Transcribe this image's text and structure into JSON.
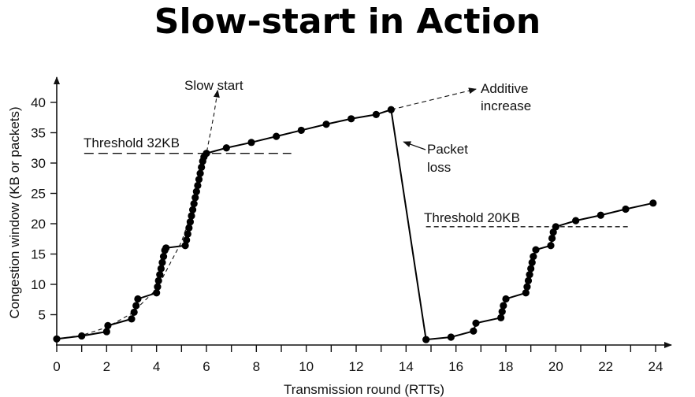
{
  "slide": {
    "title": "Slow-start in Action"
  },
  "chart_data": {
    "type": "line",
    "xlabel": "Transmission round (RTTs)",
    "ylabel": "Congestion window (KB or packets)",
    "xlim": [
      0,
      24
    ],
    "ylim": [
      0,
      40
    ],
    "xticks": [
      0,
      2,
      4,
      6,
      8,
      10,
      12,
      14,
      16,
      18,
      20,
      22,
      24
    ],
    "yticks": [
      5,
      10,
      15,
      20,
      25,
      30,
      35,
      40
    ],
    "grid": false,
    "series": [
      {
        "points": [
          [
            0,
            1
          ],
          [
            1,
            1.5
          ],
          [
            2,
            2.2
          ],
          [
            2.05,
            3.2
          ],
          [
            3,
            4.3
          ],
          [
            3.1,
            5.4
          ],
          [
            3.18,
            6.5
          ],
          [
            3.25,
            7.6
          ],
          [
            4,
            8.6
          ],
          [
            4.04,
            9.6
          ],
          [
            4.08,
            10.6
          ],
          [
            4.13,
            11.6
          ],
          [
            4.18,
            12.6
          ],
          [
            4.23,
            13.6
          ],
          [
            4.28,
            14.6
          ],
          [
            4.33,
            15.6
          ],
          [
            4.38,
            16
          ],
          [
            5.15,
            16.4
          ],
          [
            5.2,
            17.3
          ],
          [
            5.25,
            18.3
          ],
          [
            5.3,
            19.3
          ],
          [
            5.35,
            20.3
          ],
          [
            5.4,
            21.3
          ],
          [
            5.45,
            22.3
          ],
          [
            5.5,
            23.3
          ],
          [
            5.55,
            24.3
          ],
          [
            5.6,
            25.3
          ],
          [
            5.65,
            26.3
          ],
          [
            5.7,
            27.3
          ],
          [
            5.75,
            28.3
          ],
          [
            5.8,
            29.3
          ],
          [
            5.85,
            30.3
          ],
          [
            5.9,
            31
          ],
          [
            6,
            31.6
          ],
          [
            6.8,
            32.5
          ],
          [
            7.8,
            33.4
          ],
          [
            8.8,
            34.4
          ],
          [
            9.8,
            35.4
          ],
          [
            10.8,
            36.4
          ],
          [
            11.8,
            37.3
          ],
          [
            12.8,
            38
          ],
          [
            13.4,
            38.8
          ],
          [
            14.8,
            0.9
          ],
          [
            15.8,
            1.3
          ],
          [
            16.7,
            2.3
          ],
          [
            16.8,
            3.6
          ],
          [
            17.8,
            4.5
          ],
          [
            17.85,
            5.5
          ],
          [
            17.9,
            6.5
          ],
          [
            18,
            7.6
          ],
          [
            18.8,
            8.6
          ],
          [
            18.85,
            9.6
          ],
          [
            18.9,
            10.6
          ],
          [
            18.95,
            11.6
          ],
          [
            19,
            12.6
          ],
          [
            19.05,
            13.6
          ],
          [
            19.1,
            14.6
          ],
          [
            19.2,
            15.7
          ],
          [
            19.8,
            16.4
          ],
          [
            19.85,
            17.6
          ],
          [
            19.9,
            18.6
          ],
          [
            20,
            19.5
          ],
          [
            20.8,
            20.5
          ],
          [
            21.8,
            21.4
          ],
          [
            22.8,
            22.4
          ],
          [
            23.9,
            23.4
          ]
        ]
      }
    ],
    "guides": {
      "slow_start_curve": [
        [
          0,
          1
        ],
        [
          1,
          1.6
        ],
        [
          2,
          2.9
        ],
        [
          3,
          5.2
        ],
        [
          4,
          9.2
        ],
        [
          5,
          17
        ],
        [
          5.5,
          23
        ],
        [
          6,
          31.6
        ],
        [
          6.3,
          38
        ],
        [
          6.45,
          42
        ]
      ],
      "additive_increase_line": {
        "from": [
          13.4,
          38.8
        ],
        "to": [
          16.8,
          42.2
        ]
      }
    },
    "thresholds": [
      {
        "label": "Threshold 32KB",
        "y": 31.6,
        "x_from": 1.1,
        "x_to": 9.4
      },
      {
        "label": "Threshold 20KB",
        "y": 19.5,
        "x_from": 14.8,
        "x_to": 23.0
      }
    ],
    "annotations": [
      {
        "label": "Slow start",
        "x": 6.6,
        "y": 43.4
      },
      {
        "line1": "Additive",
        "line2": "increase",
        "x": 17.2,
        "y": 43.0
      },
      {
        "line1": "Packet",
        "line2": "loss",
        "x": 15.0,
        "y": 32.0,
        "pointer_to": [
          13.9,
          33.5
        ]
      }
    ]
  }
}
